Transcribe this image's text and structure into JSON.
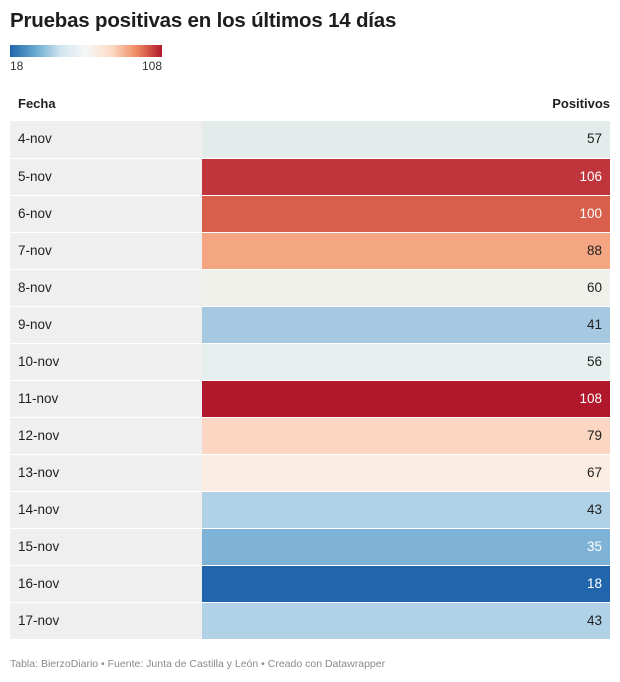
{
  "title": "Pruebas positivas en los últimos 14 días",
  "legend": {
    "min_label": "18",
    "max_label": "108"
  },
  "columns": {
    "date": "Fecha",
    "value": "Positivos"
  },
  "footer": {
    "prefix": "Tabla: ",
    "source_name": "BierzoDiario",
    "sep1": " • ",
    "fuente": "Fuente: Junta de Castilla y León",
    "sep2": " • ",
    "creado": "Creado con Datawrapper"
  },
  "colors": {
    "low": "#2166ac",
    "mid": "#f7f7f7",
    "high": "#b2182b"
  },
  "chart_data": {
    "type": "table",
    "title": "Pruebas positivas en los últimos 14 días",
    "columns": [
      "Fecha",
      "Positivos"
    ],
    "color_scale": {
      "min": 18,
      "max": 108,
      "scheme": "diverging red-blue"
    },
    "categories": [
      "4-nov",
      "5-nov",
      "6-nov",
      "7-nov",
      "8-nov",
      "9-nov",
      "10-nov",
      "11-nov",
      "12-nov",
      "13-nov",
      "14-nov",
      "15-nov",
      "16-nov",
      "17-nov"
    ],
    "values": [
      57,
      106,
      100,
      88,
      60,
      41,
      56,
      108,
      79,
      67,
      43,
      35,
      18,
      43
    ],
    "cell_colors": [
      "#e3ebeb",
      "#c0353b",
      "#d75f4c",
      "#f4a582",
      "#eff1ea",
      "#a6c9e1",
      "#e6eeee",
      "#b2182b",
      "#fbd6c2",
      "#fbede2",
      "#b1d1e6",
      "#7eb3d7",
      "#2166ac",
      "#b1d1e6"
    ]
  }
}
